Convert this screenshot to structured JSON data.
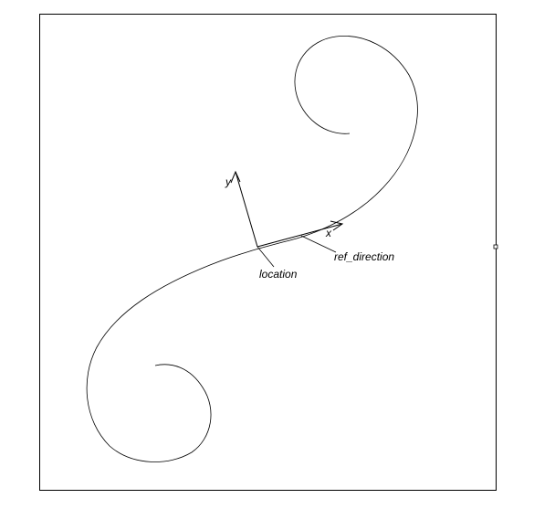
{
  "labels": {
    "y_axis": "y",
    "x_axis": "x",
    "location": "location",
    "ref_direction": "ref_direction"
  },
  "colors": {
    "ink": "#000000",
    "background": "#ffffff"
  }
}
